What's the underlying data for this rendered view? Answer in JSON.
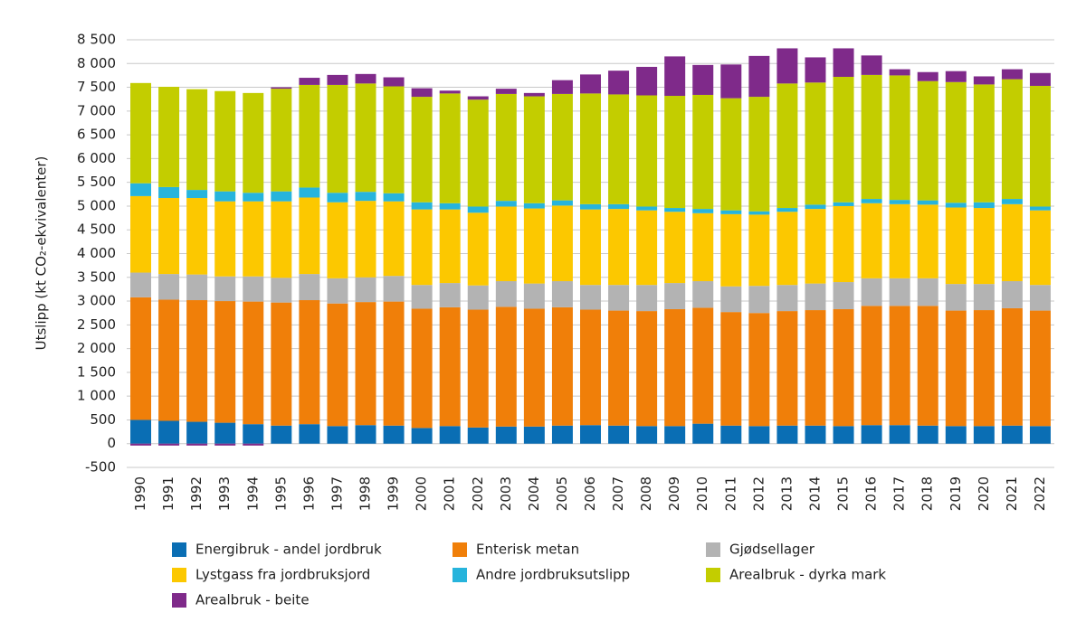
{
  "chart_data": {
    "type": "stacked_bar",
    "y_label": "Utslipp (kt CO₂-ekvivalenter)",
    "categories": [
      "1990",
      "1991",
      "1992",
      "1993",
      "1994",
      "1995",
      "1996",
      "1997",
      "1998",
      "1999",
      "2000",
      "2001",
      "2002",
      "2003",
      "2004",
      "2005",
      "2006",
      "2007",
      "2008",
      "2009",
      "2010",
      "2011",
      "2012",
      "2013",
      "2014",
      "2015",
      "2016",
      "2017",
      "2018",
      "2019",
      "2020",
      "2021",
      "2022"
    ],
    "ylim": [
      -500,
      8500
    ],
    "yticks": [
      -500,
      0,
      500,
      {
        "value": 1000,
        "label": "1 000"
      },
      {
        "value": 1500,
        "label": "1 500"
      },
      {
        "value": 2000,
        "label": "2 000"
      },
      {
        "value": 2500,
        "label": "2 500"
      },
      {
        "value": 3000,
        "label": "3 000"
      },
      {
        "value": 3500,
        "label": "3 500"
      },
      {
        "value": 4000,
        "label": "4 000"
      },
      {
        "value": 4500,
        "label": "4 500"
      },
      {
        "value": 5000,
        "label": "5 000"
      },
      {
        "value": 5500,
        "label": "5 500"
      },
      {
        "value": 6000,
        "label": "6 000"
      },
      {
        "value": 6500,
        "label": "6 500"
      },
      {
        "value": 7000,
        "label": "7 000"
      },
      {
        "value": 7500,
        "label": "7 500"
      },
      {
        "value": 8000,
        "label": "8 000"
      },
      {
        "value": 8500,
        "label": "8 500"
      }
    ],
    "grid": true,
    "series": [
      {
        "name": "Energibruk - andel jordbruk",
        "color": "#0a6eb4",
        "values": [
          500,
          480,
          460,
          440,
          410,
          380,
          410,
          370,
          390,
          380,
          330,
          370,
          340,
          360,
          360,
          380,
          390,
          380,
          370,
          370,
          420,
          380,
          370,
          380,
          380,
          370,
          390,
          390,
          380,
          370,
          370,
          380,
          370
        ]
      },
      {
        "name": "Enterisk metan",
        "color": "#f07f09",
        "values": [
          2580,
          2550,
          2560,
          2560,
          2580,
          2590,
          2610,
          2580,
          2590,
          2610,
          2510,
          2500,
          2480,
          2520,
          2480,
          2490,
          2430,
          2420,
          2420,
          2460,
          2440,
          2390,
          2380,
          2410,
          2430,
          2460,
          2510,
          2510,
          2520,
          2430,
          2440,
          2470,
          2430
        ]
      },
      {
        "name": "Gjødsellager",
        "color": "#b3b3b3",
        "values": [
          520,
          540,
          540,
          520,
          530,
          520,
          550,
          530,
          520,
          540,
          500,
          510,
          510,
          540,
          530,
          550,
          520,
          540,
          550,
          550,
          560,
          540,
          570,
          550,
          560,
          570,
          580,
          580,
          580,
          560,
          550,
          570,
          540
        ]
      },
      {
        "name": "Lystgass fra jordbruksjord",
        "color": "#fcc800",
        "values": [
          1610,
          1600,
          1610,
          1580,
          1580,
          1610,
          1610,
          1600,
          1610,
          1570,
          1590,
          1550,
          1530,
          1570,
          1580,
          1590,
          1590,
          1600,
          1570,
          1500,
          1430,
          1520,
          1500,
          1540,
          1570,
          1600,
          1580,
          1560,
          1550,
          1610,
          1600,
          1620,
          1570
        ]
      },
      {
        "name": "Andre jordbruksutslipp",
        "color": "#27b4dc",
        "values": [
          270,
          230,
          170,
          210,
          180,
          210,
          210,
          200,
          190,
          170,
          150,
          130,
          130,
          120,
          110,
          110,
          110,
          100,
          80,
          80,
          90,
          80,
          70,
          80,
          90,
          80,
          90,
          90,
          90,
          100,
          120,
          110,
          80
        ]
      },
      {
        "name": "Arealbruk - dyrka mark",
        "color": "#c3cd00",
        "values": [
          2110,
          2110,
          2120,
          2110,
          2100,
          2160,
          2160,
          2270,
          2280,
          2250,
          2220,
          2310,
          2250,
          2250,
          2250,
          2240,
          2330,
          2310,
          2340,
          2360,
          2400,
          2360,
          2410,
          2620,
          2570,
          2640,
          2610,
          2620,
          2510,
          2540,
          2480,
          2520,
          2540
        ]
      },
      {
        "name": "Arealbruk - beite",
        "color": "#7f2a8a",
        "values": [
          -40,
          -40,
          -40,
          -40,
          -40,
          30,
          150,
          210,
          200,
          190,
          180,
          60,
          70,
          110,
          70,
          290,
          400,
          500,
          600,
          830,
          630,
          710,
          860,
          740,
          530,
          600,
          410,
          130,
          190,
          230,
          170,
          210,
          270
        ]
      }
    ]
  }
}
